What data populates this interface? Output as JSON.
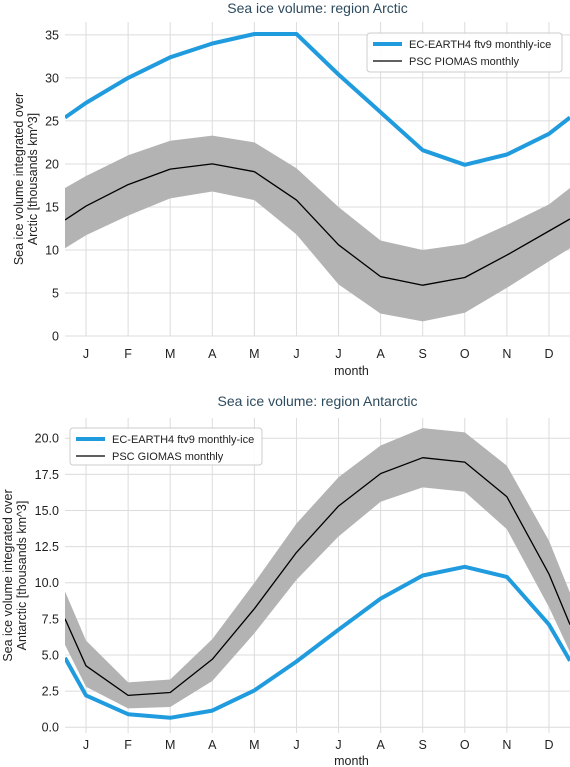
{
  "chart_data": [
    {
      "type": "line",
      "title": "Sea ice volume: region Arctic",
      "xlabel": "month",
      "ylabel": [
        "Sea ice volume integrated over",
        "Arctic [thousands km^3]"
      ],
      "categories": [
        "J",
        "F",
        "M",
        "A",
        "M",
        "J",
        "J",
        "A",
        "S",
        "O",
        "N",
        "D"
      ],
      "x": [
        1,
        2,
        3,
        4,
        5,
        6,
        7,
        8,
        9,
        10,
        11,
        12
      ],
      "yticks": [
        "0",
        "5",
        "10",
        "15",
        "20",
        "25",
        "30",
        "35"
      ],
      "ylim": [
        0,
        36.5
      ],
      "xlim": [
        0.5,
        12.5
      ],
      "grid": true,
      "legend": "top-right",
      "series": [
        {
          "name": "EC-EARTH4 ftv9 monthly-ice",
          "color": "#1f9bde",
          "values": [
            27.1,
            30.0,
            32.4,
            34.0,
            35.1,
            35.1,
            30.4,
            26.0,
            21.6,
            19.9,
            21.1,
            23.5
          ],
          "edge": [
            25.4,
            25.4
          ]
        },
        {
          "name": "PSC PIOMAS monthly",
          "color": "#000000",
          "values": [
            15.1,
            17.6,
            19.4,
            20.0,
            19.1,
            15.8,
            10.6,
            6.9,
            5.9,
            6.8,
            9.4,
            12.2
          ],
          "edge": [
            13.5,
            13.6
          ],
          "band_upper": [
            18.6,
            21.0,
            22.7,
            23.3,
            22.5,
            19.5,
            15.0,
            11.1,
            10.0,
            10.7,
            12.9,
            15.3
          ],
          "band_lower": [
            11.7,
            14.0,
            16.0,
            16.8,
            15.8,
            11.8,
            6.0,
            2.6,
            1.7,
            2.7,
            5.6,
            8.7
          ],
          "band_edge_upper": [
            17.2,
            17.2
          ],
          "band_edge_lower": [
            10.2,
            10.2
          ],
          "band_color": "#b3b3b3"
        }
      ]
    },
    {
      "type": "line",
      "title": "Sea ice volume: region Antarctic",
      "xlabel": "month",
      "ylabel": [
        "Sea ice volume integrated over",
        "Antarctic [thousands km^3]"
      ],
      "categories": [
        "J",
        "F",
        "M",
        "A",
        "M",
        "J",
        "J",
        "A",
        "S",
        "O",
        "N",
        "D"
      ],
      "x": [
        1,
        2,
        3,
        4,
        5,
        6,
        7,
        8,
        9,
        10,
        11,
        12
      ],
      "yticks": [
        "0.0",
        "2.5",
        "5.0",
        "7.5",
        "10.0",
        "12.5",
        "15.0",
        "17.5",
        "20.0"
      ],
      "ylim": [
        -0.4,
        21.4
      ],
      "xlim": [
        0.5,
        12.5
      ],
      "grid": true,
      "legend": "top-left",
      "series": [
        {
          "name": "EC-EARTH4 ftv9 monthly-ice",
          "color": "#1f9bde",
          "values": [
            2.2,
            0.9,
            0.65,
            1.15,
            2.55,
            4.55,
            6.75,
            8.9,
            10.5,
            11.1,
            10.4,
            7.1
          ],
          "edge": [
            4.8,
            4.6
          ]
        },
        {
          "name": "PSC GIOMAS monthly",
          "color": "#000000",
          "values": [
            4.25,
            2.2,
            2.4,
            4.7,
            8.2,
            12.1,
            15.3,
            17.55,
            18.65,
            18.35,
            15.95,
            10.6
          ],
          "edge": [
            7.5,
            7.1
          ],
          "band_upper": [
            6.0,
            3.1,
            3.3,
            6.1,
            10.0,
            14.1,
            17.3,
            19.5,
            20.7,
            20.4,
            18.1,
            12.9
          ],
          "band_lower": [
            2.8,
            1.3,
            1.4,
            3.2,
            6.5,
            10.2,
            13.2,
            15.6,
            16.6,
            16.3,
            13.7,
            8.3
          ],
          "band_edge_upper": [
            9.4,
            9.3
          ],
          "band_edge_lower": [
            5.7,
            5.2
          ],
          "band_color": "#b3b3b3"
        }
      ]
    }
  ]
}
